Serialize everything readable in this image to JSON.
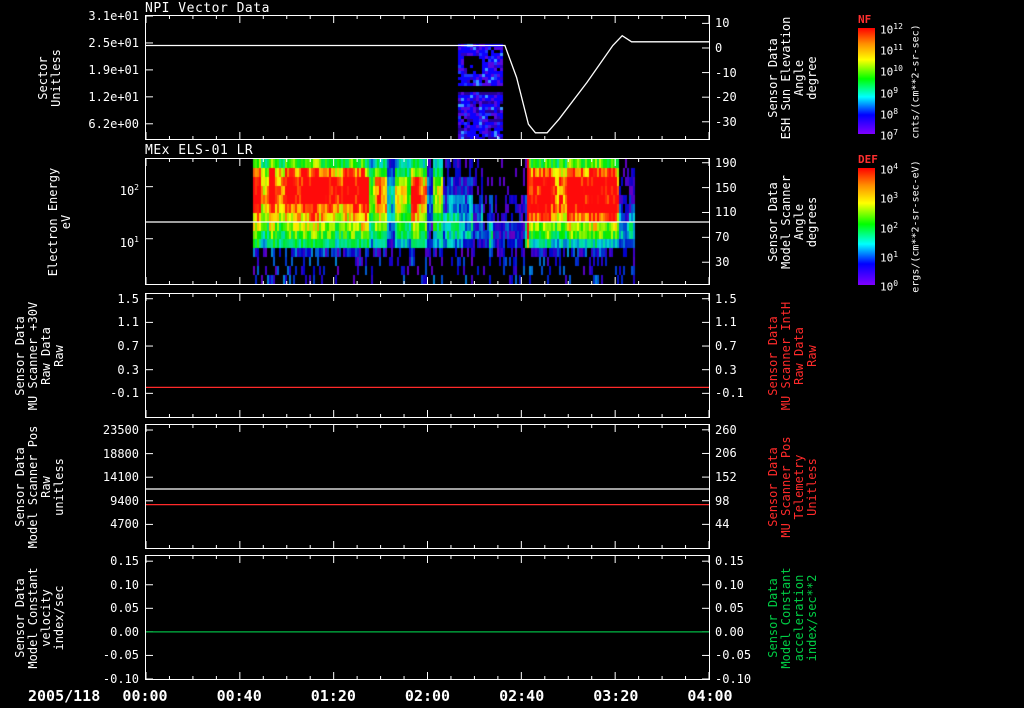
{
  "chart_data": {
    "type": "multi-panel-timeseries-spectrogram",
    "x_axis": {
      "date_label": "2005/118",
      "start_min": 0,
      "end_min": 240,
      "major_tick_min": 40,
      "minor_tick_min": 10,
      "tick_labels": [
        "00:00",
        "00:40",
        "01:20",
        "02:00",
        "02:40",
        "03:20",
        "04:00"
      ]
    },
    "panels": [
      {
        "key": "npi-vector",
        "title": "NPI Vector Data",
        "left_label": [
          "Sector",
          "Unitless"
        ],
        "left_label_color": "#ffffff",
        "left_axis": {
          "log": false,
          "range": [
            2.7,
            31
          ],
          "ticks": [
            {
              "v": 31,
              "label": "3.1e+01"
            },
            {
              "v": 24.8,
              "label": "2.5e+01"
            },
            {
              "v": 18.6,
              "label": "1.9e+01"
            },
            {
              "v": 12.4,
              "label": "1.2e+01"
            },
            {
              "v": 6.2,
              "label": "6.2e+00"
            }
          ]
        },
        "right_label": [
          "Sensor Data",
          "ESH Sun Elevation",
          "Angle",
          "degree"
        ],
        "right_label_color": "#ffffff",
        "right_axis": {
          "log": false,
          "range": [
            -37,
            13
          ],
          "ticks": [
            {
              "v": 10,
              "label": "10"
            },
            {
              "v": 0,
              "label": "0"
            },
            {
              "v": -10,
              "label": "-10"
            },
            {
              "v": -20,
              "label": "-20"
            },
            {
              "v": -30,
              "label": "-30"
            }
          ]
        },
        "lines": [
          {
            "name": "sun-elevation-angle",
            "color": "#ffffff",
            "axis": "right",
            "points": [
              [
                0,
                1
              ],
              [
                153,
                1
              ],
              [
                158,
                -12
              ],
              [
                163,
                -31
              ],
              [
                166,
                -34.5
              ],
              [
                171,
                -34.5
              ],
              [
                176,
                -29
              ],
              [
                188,
                -14
              ],
              [
                199,
                1
              ],
              [
                203,
                5
              ],
              [
                207,
                2.5
              ],
              [
                240,
                2.5
              ]
            ]
          }
        ],
        "patches": [
          {
            "t0": 133,
            "t1": 151,
            "v0": 15.5,
            "v1": 24.5,
            "kind": "blue-noise-holed"
          },
          {
            "t0": 133,
            "t1": 151,
            "v0": 2.8,
            "v1": 13.5,
            "kind": "blue-noise"
          }
        ]
      },
      {
        "key": "mex-els",
        "title": "MEx ELS-01 LR",
        "left_label": [
          "Electron Energy",
          "eV"
        ],
        "left_label_color": "#ffffff",
        "left_axis": {
          "log": true,
          "range": [
            1.35,
            340
          ],
          "ticks": [
            {
              "v": 100,
              "label": "10^2"
            },
            {
              "v": 10,
              "label": "10^1"
            }
          ]
        },
        "right_label": [
          "Sensor Data",
          "Model Scanner",
          "Angle",
          "degrees"
        ],
        "right_label_color": "#ffffff",
        "right_axis": {
          "log": false,
          "range": [
            -5,
            196
          ],
          "ticks": [
            {
              "v": 190,
              "label": "190"
            },
            {
              "v": 150,
              "label": "150"
            },
            {
              "v": 110,
              "label": "110"
            },
            {
              "v": 70,
              "label": "70"
            },
            {
              "v": 30,
              "label": "30"
            }
          ]
        },
        "lines": [
          {
            "name": "energy-overlay-line",
            "color": "#ffffff",
            "axis": "left",
            "points": [
              [
                0,
                21
              ],
              [
                240,
                21
              ]
            ]
          }
        ],
        "spectrogram": {
          "t0": 45,
          "t1": 208,
          "rows": 14,
          "energy_range_ev": [
            1.35,
            340
          ],
          "segments": [
            {
              "t0": 45,
              "t1": 93,
              "kind": "steady",
              "profile": [
                1,
                1,
                1,
                2,
                5,
                6,
                7,
                8,
                9,
                10,
                10,
                10,
                9,
                6
              ]
            },
            {
              "t0": 93,
              "t1": 126,
              "kind": "striped",
              "profile": [
                1,
                1,
                1,
                2,
                5,
                6,
                7,
                8,
                9,
                10,
                10,
                9,
                7,
                5
              ]
            },
            {
              "t0": 126,
              "t1": 143,
              "kind": "weak",
              "profile": [
                0,
                1,
                1,
                1,
                3,
                4,
                4,
                4,
                3,
                3,
                2,
                2,
                1,
                1
              ]
            },
            {
              "t0": 143,
              "t1": 162,
              "kind": "gap",
              "profile": [
                0,
                0,
                0,
                1,
                2,
                2,
                2,
                1,
                1,
                1,
                0,
                0,
                0,
                0
              ]
            },
            {
              "t0": 162,
              "t1": 201,
              "kind": "steady",
              "profile": [
                1,
                1,
                1,
                2,
                4,
                6,
                7,
                9,
                10,
                10,
                10,
                10,
                9,
                6
              ]
            },
            {
              "t0": 201,
              "t1": 208,
              "kind": "weak",
              "profile": [
                0,
                1,
                1,
                1,
                3,
                4,
                4,
                3,
                2,
                2,
                1,
                1,
                1,
                0
              ]
            }
          ]
        }
      },
      {
        "key": "mu-scanner-30v",
        "title": "",
        "left_label": [
          "Sensor Data",
          "MU Scanner +30V",
          "Raw Data",
          "Raw"
        ],
        "left_label_color": "#ffffff",
        "left_axis": {
          "log": false,
          "range": [
            -0.5,
            1.58
          ],
          "ticks": [
            {
              "v": 1.5,
              "label": "1.5"
            },
            {
              "v": 1.1,
              "label": "1.1"
            },
            {
              "v": 0.7,
              "label": "0.7"
            },
            {
              "v": 0.3,
              "label": "0.3"
            },
            {
              "v": -0.1,
              "label": "-0.1"
            }
          ]
        },
        "right_label": [
          "Sensor Data",
          "MU Scanner IntH",
          "Raw Data",
          "Raw"
        ],
        "right_label_color": "#ff2a2a",
        "right_axis": {
          "log": false,
          "range": [
            -0.5,
            1.58
          ],
          "ticks": [
            {
              "v": 1.5,
              "label": "1.5"
            },
            {
              "v": 1.1,
              "label": "1.1"
            },
            {
              "v": 0.7,
              "label": "0.7"
            },
            {
              "v": 0.3,
              "label": "0.3"
            },
            {
              "v": -0.1,
              "label": "-0.1"
            }
          ]
        },
        "lines": [
          {
            "name": "mu-scanner-inth-raw",
            "color": "#ff2a2a",
            "axis": "left",
            "points": [
              [
                0,
                0.0
              ],
              [
                240,
                0.0
              ]
            ]
          }
        ]
      },
      {
        "key": "scanner-pos",
        "title": "",
        "left_label": [
          "Sensor Data",
          "Model Scanner Pos",
          "Raw",
          "unitless"
        ],
        "left_label_color": "#ffffff",
        "left_axis": {
          "log": false,
          "range": [
            0,
            24500
          ],
          "ticks": [
            {
              "v": 23500,
              "label": "23500"
            },
            {
              "v": 18800,
              "label": "18800"
            },
            {
              "v": 14100,
              "label": "14100"
            },
            {
              "v": 9400,
              "label": "9400"
            },
            {
              "v": 4700,
              "label": "4700"
            }
          ]
        },
        "right_label": [
          "Sensor Data",
          "MU Scanner Pos",
          "Telemetry",
          "Unitless"
        ],
        "right_label_color": "#ff2a2a",
        "right_axis": {
          "log": false,
          "range": [
            -10,
            271
          ],
          "ticks": [
            {
              "v": 260,
              "label": "260"
            },
            {
              "v": 206,
              "label": "206"
            },
            {
              "v": 152,
              "label": "152"
            },
            {
              "v": 98,
              "label": "98"
            },
            {
              "v": 44,
              "label": "44"
            }
          ]
        },
        "lines": [
          {
            "name": "model-scanner-pos-raw",
            "color": "#ffffff",
            "axis": "left",
            "points": [
              [
                0,
                11750
              ],
              [
                240,
                11750
              ]
            ]
          },
          {
            "name": "mu-scanner-pos-telemetry",
            "color": "#ff2a2a",
            "axis": "left",
            "points": [
              [
                0,
                8650
              ],
              [
                240,
                8650
              ]
            ]
          }
        ]
      },
      {
        "key": "model-constant",
        "title": "",
        "left_label": [
          "Sensor Data",
          "Model Constant",
          "velocity",
          "index/sec"
        ],
        "left_label_color": "#ffffff",
        "left_axis": {
          "log": false,
          "range": [
            -0.1,
            0.161
          ],
          "ticks": [
            {
              "v": 0.15,
              "label": "0.15"
            },
            {
              "v": 0.1,
              "label": "0.10"
            },
            {
              "v": 0.05,
              "label": "0.05"
            },
            {
              "v": 0.0,
              "label": "0.00"
            },
            {
              "v": -0.05,
              "label": "-0.05"
            },
            {
              "v": -0.1,
              "label": "-0.10"
            }
          ]
        },
        "right_label": [
          "Sensor Data",
          "Model Constant",
          "acceleration",
          "index/sec**2"
        ],
        "right_label_color": "#00cc44",
        "right_axis": {
          "log": false,
          "range": [
            -0.1,
            0.161
          ],
          "ticks": [
            {
              "v": 0.15,
              "label": "0.15"
            },
            {
              "v": 0.1,
              "label": "0.10"
            },
            {
              "v": 0.05,
              "label": "0.05"
            },
            {
              "v": 0.0,
              "label": "0.00"
            },
            {
              "v": -0.05,
              "label": "-0.05"
            },
            {
              "v": -0.1,
              "label": "-0.10"
            }
          ]
        },
        "lines": [
          {
            "name": "model-constant-velocity",
            "color": "#00b843",
            "axis": "left",
            "points": [
              [
                0,
                0.0
              ],
              [
                240,
                0.0
              ]
            ]
          }
        ]
      }
    ],
    "colorbars": [
      {
        "title": "NF",
        "unit": "cnts/(cm**2-sr-sec)",
        "tick_labels": [
          "10^12",
          "10^11",
          "10^10",
          "10^9",
          "10^8",
          "10^7"
        ]
      },
      {
        "title": "DEF",
        "unit": "ergs/(cm**2-sr-sec-eV)",
        "tick_labels": [
          "10^4",
          "10^3",
          "10^2",
          "10^1",
          "10^0"
        ]
      }
    ]
  }
}
